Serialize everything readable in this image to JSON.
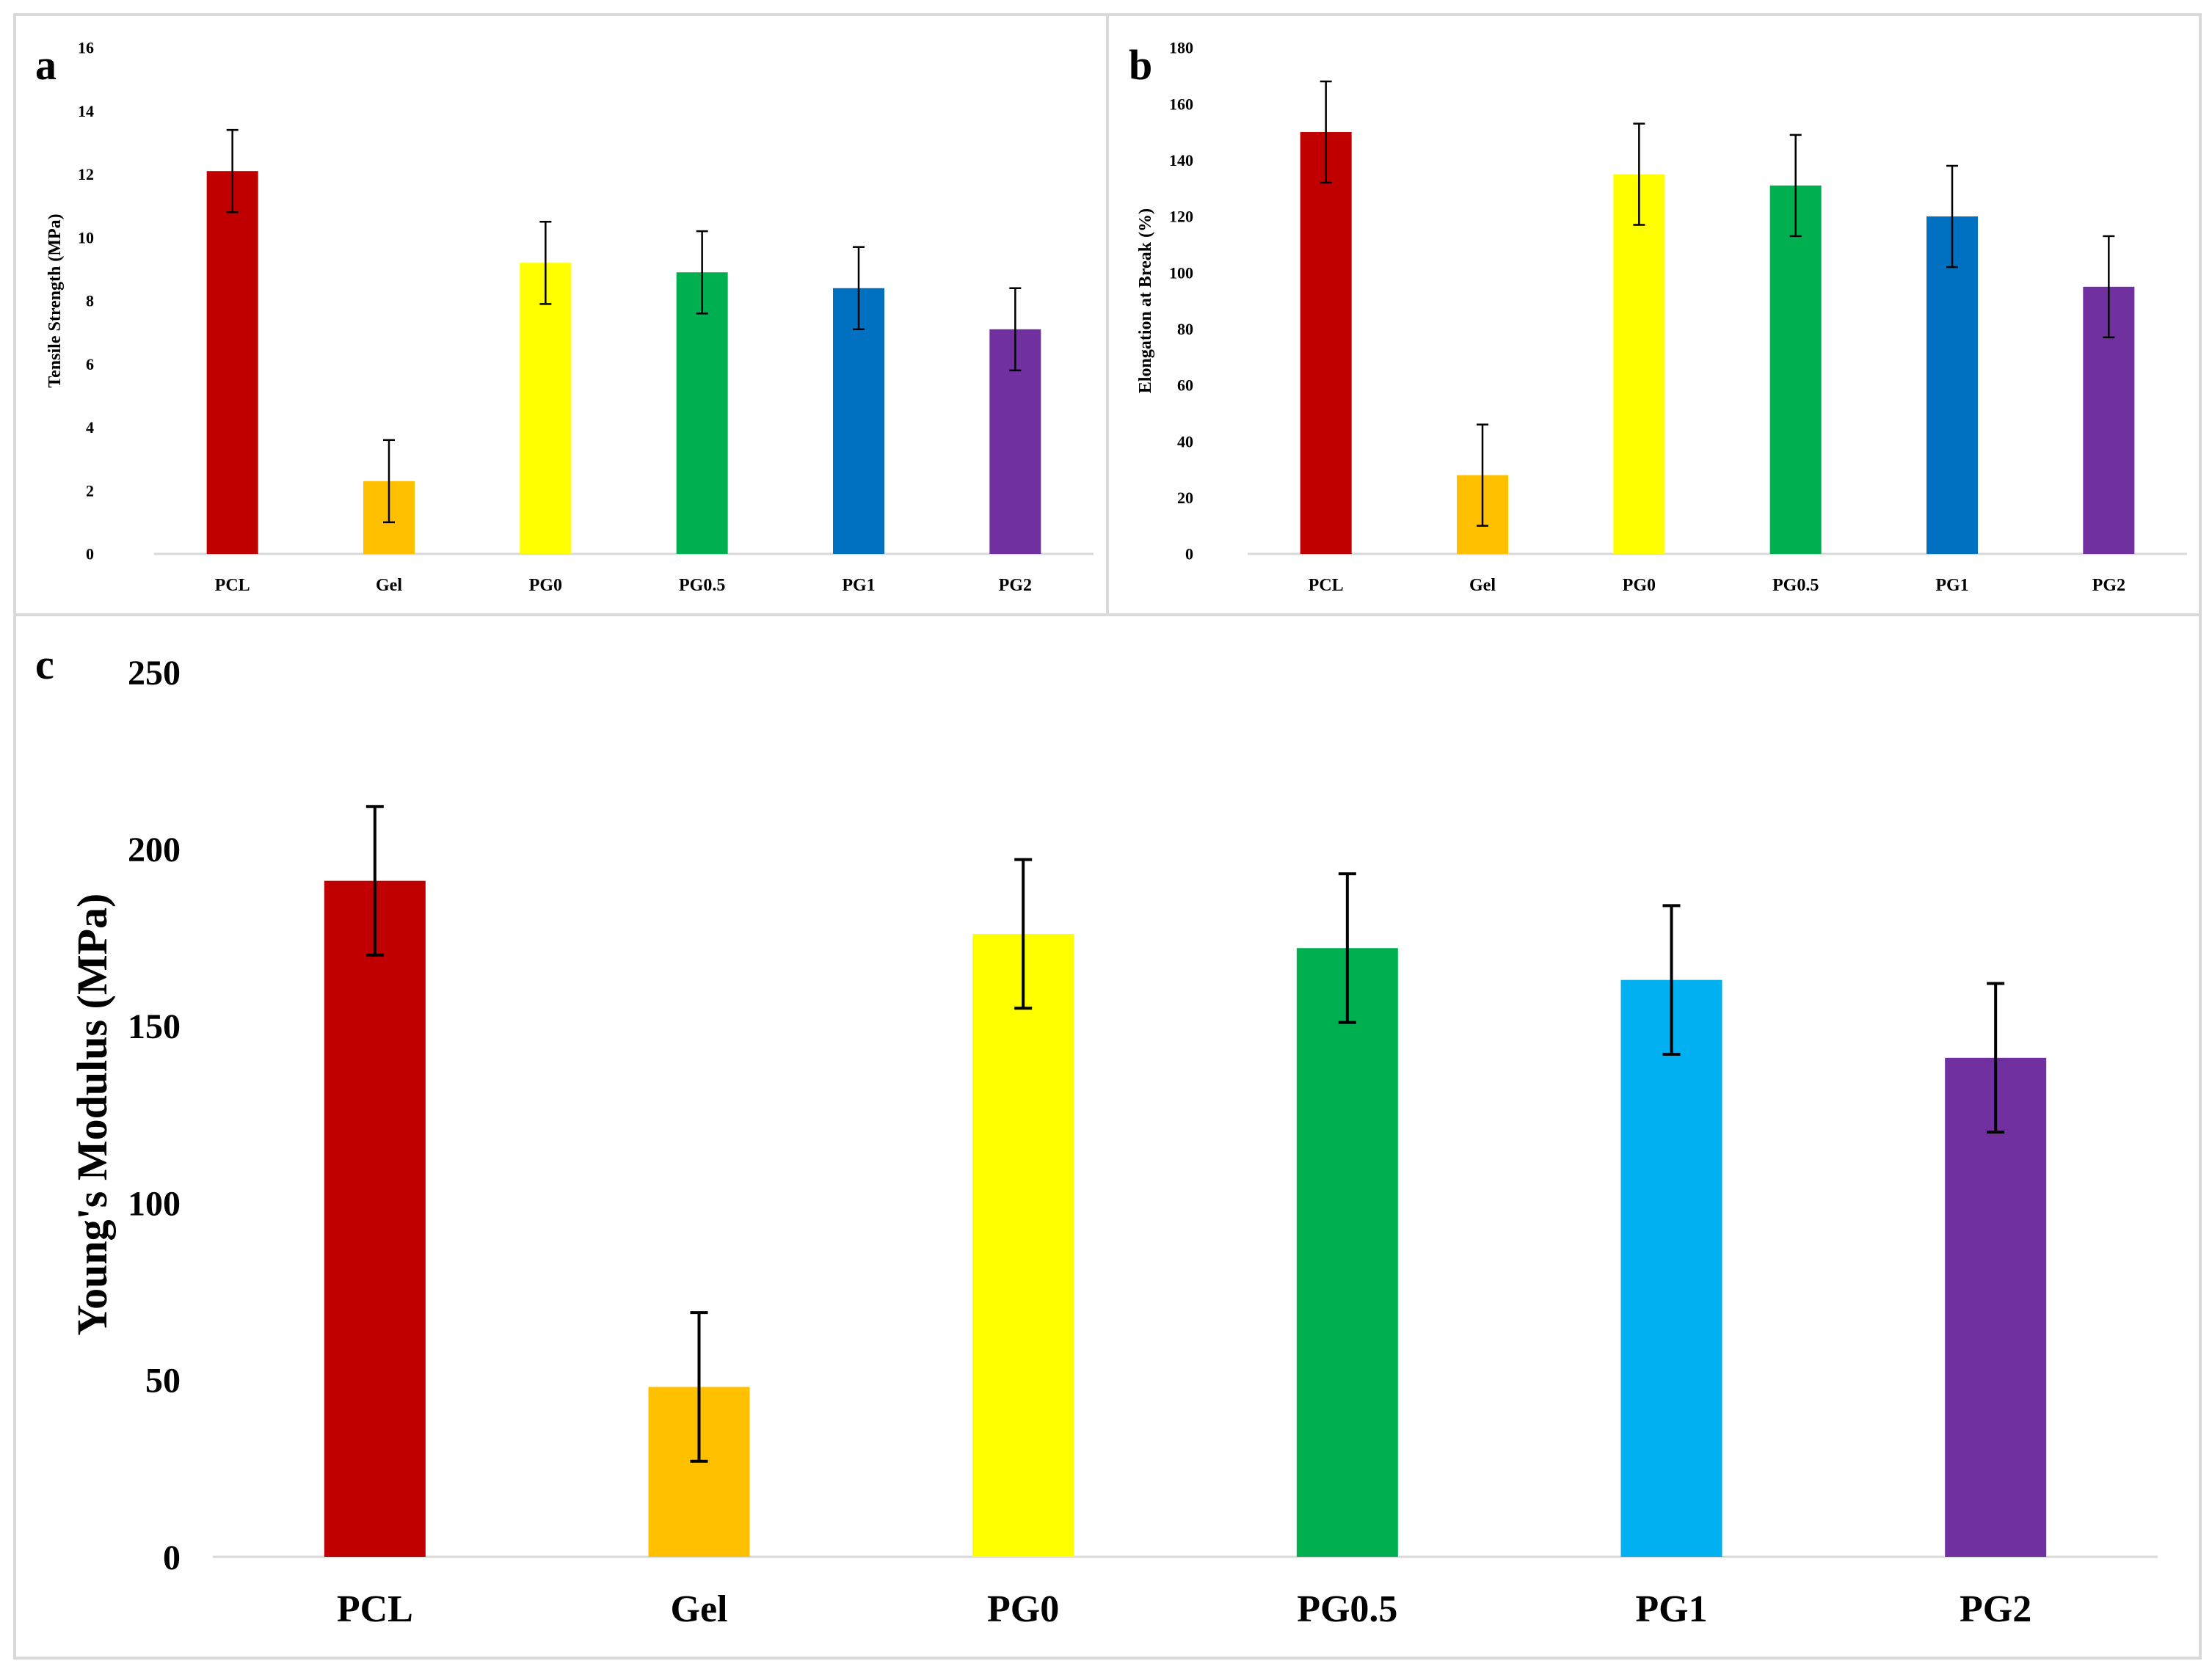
{
  "figure": {
    "panels": [
      "a",
      "b",
      "c"
    ]
  },
  "chart_data": [
    {
      "panel": "a",
      "type": "bar",
      "categories": [
        "PCL",
        "Gel",
        "PG0",
        "PG0.5",
        "PG1",
        "PG2"
      ],
      "values": [
        12.1,
        2.3,
        9.2,
        8.9,
        8.4,
        7.1
      ],
      "errors": [
        1.3,
        1.3,
        1.3,
        1.3,
        1.3,
        1.3
      ],
      "colors": [
        "#c00000",
        "#ffc000",
        "#ffff00",
        "#00b050",
        "#0070c0",
        "#7030a0"
      ],
      "title": "",
      "xlabel": "",
      "ylabel": "Tensile Strength (MPa)",
      "ylim": [
        0,
        16
      ],
      "yticks": [
        0,
        2,
        4,
        6,
        8,
        10,
        12,
        14,
        16
      ],
      "grid": false
    },
    {
      "panel": "b",
      "type": "bar",
      "categories": [
        "PCL",
        "Gel",
        "PG0",
        "PG0.5",
        "PG1",
        "PG2"
      ],
      "values": [
        150,
        28,
        135,
        131,
        120,
        95
      ],
      "errors": [
        18,
        18,
        18,
        18,
        18,
        18
      ],
      "colors": [
        "#c00000",
        "#ffc000",
        "#ffff00",
        "#00b050",
        "#0070c0",
        "#7030a0"
      ],
      "title": "",
      "xlabel": "",
      "ylabel": "Elongation at Break (%)",
      "ylim": [
        0,
        180
      ],
      "yticks": [
        0,
        20,
        40,
        60,
        80,
        100,
        120,
        140,
        160,
        180
      ],
      "grid": false
    },
    {
      "panel": "c",
      "type": "bar",
      "categories": [
        "PCL",
        "Gel",
        "PG0",
        "PG0.5",
        "PG1",
        "PG2"
      ],
      "values": [
        191,
        48,
        176,
        172,
        163,
        141
      ],
      "errors": [
        21,
        21,
        21,
        21,
        21,
        21
      ],
      "colors": [
        "#c00000",
        "#ffc000",
        "#ffff00",
        "#00b050",
        "#00b0f0",
        "#7030a0"
      ],
      "title": "",
      "xlabel": "",
      "ylabel": "Young's Modulus (MPa)",
      "ylim": [
        0,
        250
      ],
      "yticks": [
        0,
        50,
        100,
        150,
        200,
        250
      ],
      "grid": false
    }
  ]
}
